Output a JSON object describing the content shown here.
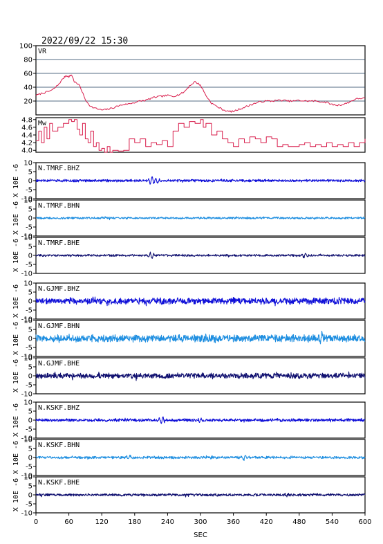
{
  "header": {
    "datetime": "2022/09/22  15:30"
  },
  "x_axis": {
    "label": "SEC",
    "ticks": [
      "0",
      "60",
      "120",
      "180",
      "240",
      "300",
      "360",
      "420",
      "480",
      "540",
      "600"
    ]
  },
  "colors": {
    "vr": "#d81b4a",
    "mw": "#d81b4a",
    "bhz": "#1010d8",
    "bhn": "#1e8ee0",
    "bhe": "#101070",
    "grid": "#1a3a5a"
  },
  "chart_data": [
    {
      "type": "line",
      "label": "VR",
      "ylim": [
        0,
        100
      ],
      "yticks": [
        "100",
        "80",
        "60",
        "40",
        "20"
      ],
      "grid": true,
      "x": [
        0,
        10,
        20,
        30,
        40,
        50,
        55,
        60,
        65,
        70,
        80,
        90,
        100,
        110,
        120,
        130,
        140,
        150,
        160,
        170,
        180,
        190,
        200,
        210,
        220,
        230,
        240,
        250,
        260,
        270,
        280,
        290,
        300,
        310,
        320,
        330,
        340,
        350,
        360,
        370,
        380,
        390,
        400,
        410,
        420,
        430,
        440,
        450,
        460,
        470,
        480,
        490,
        500,
        510,
        520,
        530,
        540,
        550,
        560,
        570,
        580,
        590,
        600
      ],
      "y": [
        28,
        31,
        33,
        36,
        43,
        53,
        57,
        55,
        58,
        48,
        42,
        22,
        12,
        9,
        7,
        8,
        10,
        13,
        15,
        16,
        18,
        20,
        21,
        24,
        26,
        27,
        28,
        27,
        29,
        33,
        42,
        48,
        43,
        28,
        17,
        12,
        8,
        5,
        5,
        8,
        11,
        14,
        17,
        19,
        20,
        20,
        21,
        21,
        20,
        20,
        21,
        20,
        20,
        20,
        19,
        18,
        15,
        14,
        15,
        18,
        22,
        24,
        24
      ]
    },
    {
      "type": "line",
      "label": "Mw",
      "ylim": [
        3.95,
        4.85
      ],
      "yticks": [
        "4.8",
        "4.6",
        "4.4",
        "4.2",
        "4.0"
      ],
      "grid": false,
      "x": [
        0,
        5,
        10,
        15,
        20,
        25,
        30,
        40,
        50,
        60,
        65,
        70,
        75,
        80,
        85,
        90,
        95,
        100,
        105,
        110,
        115,
        120,
        125,
        130,
        135,
        140,
        150,
        160,
        170,
        180,
        190,
        200,
        210,
        220,
        230,
        240,
        250,
        260,
        270,
        280,
        290,
        300,
        305,
        310,
        320,
        330,
        340,
        350,
        360,
        370,
        380,
        390,
        400,
        410,
        420,
        430,
        440,
        450,
        460,
        470,
        480,
        490,
        500,
        510,
        520,
        530,
        540,
        550,
        560,
        570,
        580,
        590,
        600
      ],
      "y": [
        4.25,
        4.5,
        4.2,
        4.6,
        4.3,
        4.7,
        4.5,
        4.6,
        4.7,
        4.8,
        4.75,
        4.8,
        4.55,
        4.4,
        4.7,
        4.3,
        4.2,
        4.5,
        4.1,
        4.2,
        4.0,
        4.05,
        3.95,
        4.1,
        3.95,
        4.0,
        3.98,
        4.0,
        4.3,
        4.2,
        4.3,
        4.1,
        4.2,
        4.15,
        4.25,
        4.1,
        4.5,
        4.7,
        4.6,
        4.75,
        4.7,
        4.8,
        4.6,
        4.7,
        4.4,
        4.5,
        4.3,
        4.2,
        4.1,
        4.3,
        4.2,
        4.35,
        4.3,
        4.2,
        4.35,
        4.3,
        4.1,
        4.15,
        4.1,
        4.1,
        4.15,
        4.2,
        4.1,
        4.15,
        4.1,
        4.2,
        4.1,
        4.15,
        4.1,
        4.2,
        4.1,
        4.2,
        4.3
      ]
    },
    {
      "type": "line",
      "label": "N.TMRF.BHZ",
      "unit": "X 10E -6",
      "ylim": [
        -10,
        10
      ],
      "yticks": [
        "10",
        "5",
        "0",
        "-5",
        "-10"
      ],
      "color_key": "bhz",
      "amplitude": 0.6,
      "events": [
        [
          210,
          2.2
        ],
        [
          220,
          -1.5
        ]
      ]
    },
    {
      "type": "line",
      "label": "N.TMRF.BHN",
      "unit": "X 10E -6",
      "ylim": [
        -10,
        10
      ],
      "yticks": [
        "10",
        "5",
        "0",
        "-5",
        "-10"
      ],
      "color_key": "bhn",
      "amplitude": 0.5,
      "events": []
    },
    {
      "type": "line",
      "label": "N.TMRF.BHE",
      "unit": "X 10E -6",
      "ylim": [
        -10,
        10
      ],
      "yticks": [
        "10",
        "5",
        "0",
        "-5",
        "-10"
      ],
      "color_key": "bhe",
      "amplitude": 0.5,
      "events": [
        [
          210,
          -1.5
        ],
        [
          490,
          1.2
        ]
      ]
    },
    {
      "type": "line",
      "label": "N.GJMF.BHZ",
      "unit": "X 10E -6",
      "ylim": [
        -10,
        10
      ],
      "yticks": [
        "10",
        "5",
        "0",
        "-5",
        "-10"
      ],
      "color_key": "bhz",
      "amplitude": 1.5,
      "events": []
    },
    {
      "type": "line",
      "label": "N.GJMF.BHN",
      "unit": "X 10E -6",
      "ylim": [
        -10,
        10
      ],
      "yticks": [
        "10",
        "5",
        "0",
        "-5",
        "-10"
      ],
      "color_key": "bhn",
      "amplitude": 1.7,
      "events": [
        [
          520,
          2.5
        ]
      ]
    },
    {
      "type": "line",
      "label": "N.GJMF.BHE",
      "unit": "X 10E -6",
      "ylim": [
        -10,
        10
      ],
      "yticks": [
        "10",
        "5",
        "0",
        "-5",
        "-10"
      ],
      "color_key": "bhe",
      "amplitude": 1.3,
      "events": []
    },
    {
      "type": "line",
      "label": "N.KSKF.BHZ",
      "unit": "X 10E -6",
      "ylim": [
        -10,
        10
      ],
      "yticks": [
        "10",
        "5",
        "0",
        "-5",
        "-10"
      ],
      "color_key": "bhz",
      "amplitude": 0.7,
      "events": [
        [
          230,
          2.0
        ],
        [
          300,
          1.0
        ]
      ]
    },
    {
      "type": "line",
      "label": "N.KSKF.BHN",
      "unit": "X 10E -6",
      "ylim": [
        -10,
        10
      ],
      "yticks": [
        "10",
        "5",
        "0",
        "-5",
        "-10"
      ],
      "color_key": "bhn",
      "amplitude": 0.6,
      "events": [
        [
          170,
          1.3
        ],
        [
          380,
          1.2
        ]
      ]
    },
    {
      "type": "line",
      "label": "N.KSKF.BHE",
      "unit": "X 10E -6",
      "ylim": [
        -10,
        10
      ],
      "yticks": [
        "10",
        "5",
        "0",
        "-5",
        "-10"
      ],
      "color_key": "bhe",
      "amplitude": 0.6,
      "events": []
    }
  ]
}
